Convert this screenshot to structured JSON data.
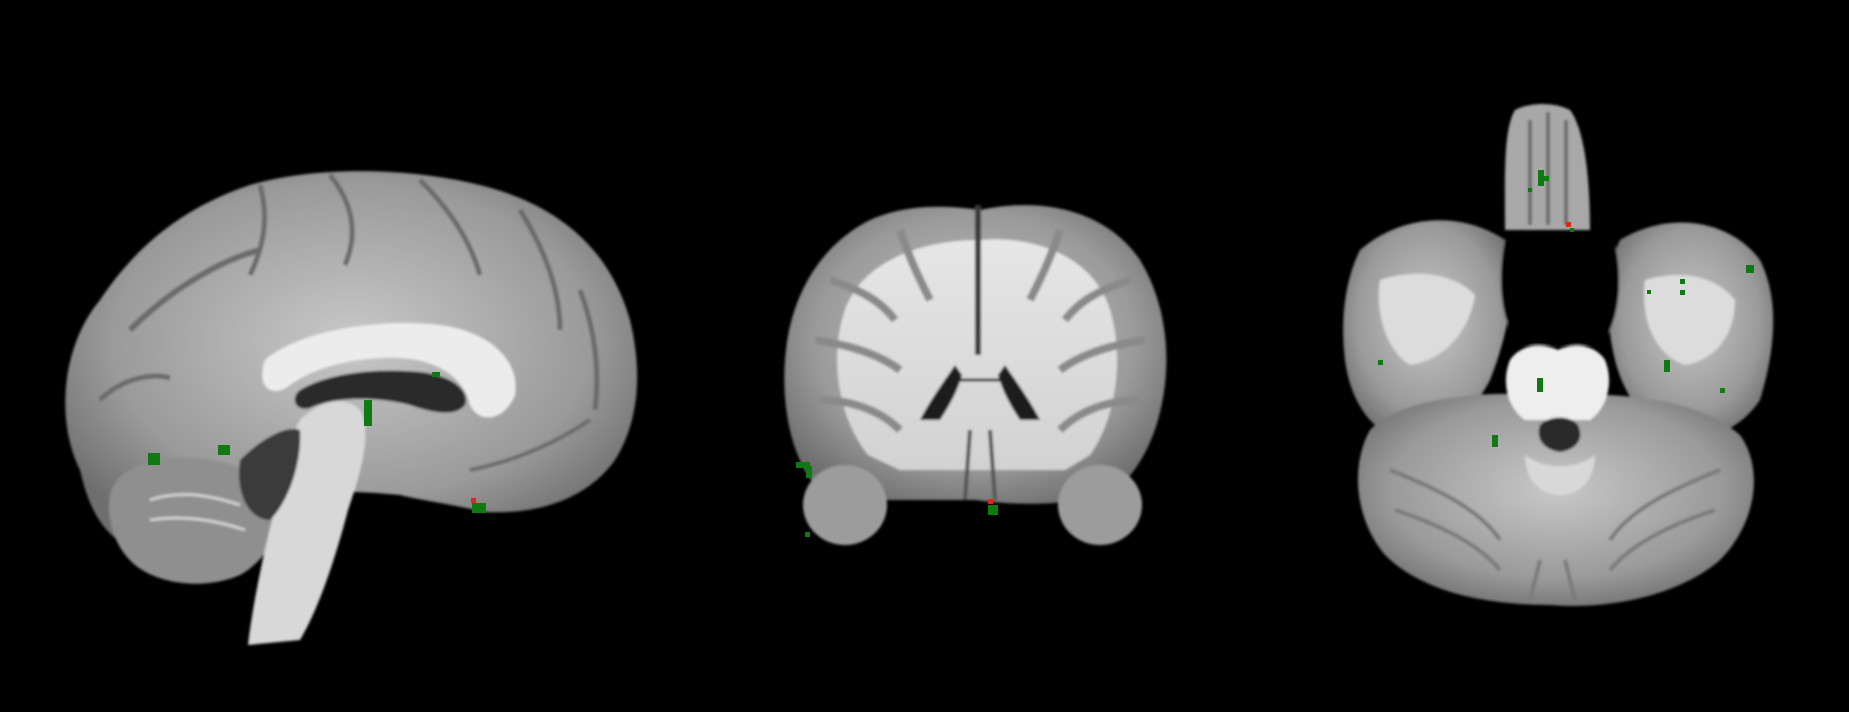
{
  "viewer": {
    "background": "#000000",
    "views": [
      {
        "name": "sagittal-view",
        "plane": "sagittal"
      },
      {
        "name": "coronal-view",
        "plane": "coronal"
      },
      {
        "name": "axial-view",
        "plane": "axial"
      }
    ]
  },
  "overlay": {
    "colors": {
      "cluster": "#0f7a12",
      "peak": "#e0261c"
    }
  }
}
